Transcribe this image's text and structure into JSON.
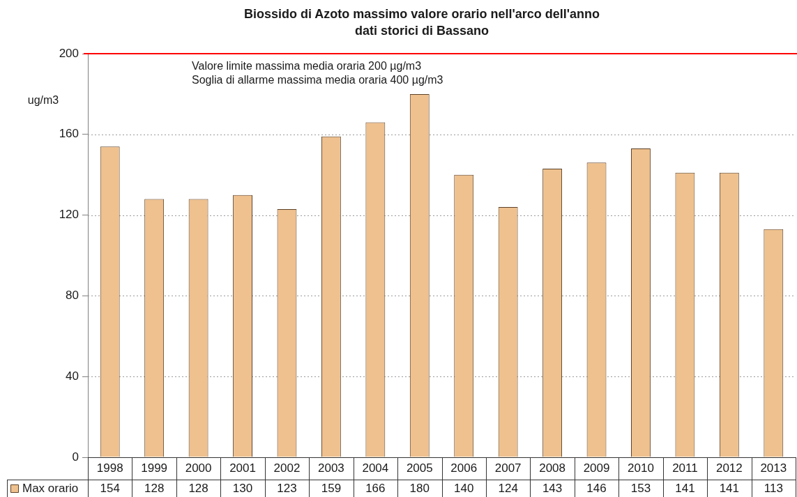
{
  "chart_data": {
    "type": "bar",
    "title": "Biossido di Azoto massimo valore orario nell'arco dell'anno",
    "subtitle": "dati storici di Bassano",
    "ylabel": "ug/m3",
    "categories": [
      "1998",
      "1999",
      "2000",
      "2001",
      "2002",
      "2003",
      "2004",
      "2005",
      "2006",
      "2007",
      "2008",
      "2009",
      "2010",
      "2011",
      "2012",
      "2013"
    ],
    "series": [
      {
        "name": "Max orario",
        "color": "#efc18e",
        "values": [
          154,
          128,
          128,
          130,
          123,
          159,
          166,
          180,
          140,
          124,
          143,
          146,
          153,
          141,
          141,
          113
        ]
      }
    ],
    "ylim": [
      0,
      200
    ],
    "yticks": [
      0,
      40,
      80,
      120,
      160,
      200
    ],
    "grid": "y",
    "legend": "bottom left",
    "data_labels": true,
    "ref_lines": [
      {
        "axis": "y",
        "value": 200,
        "label": "Valore limite massima media oraria 200 µg/m3",
        "color": "#ff0000"
      }
    ],
    "annotations": [
      "Soglia di allarme massima media oraria 400 µg/m3"
    ]
  }
}
